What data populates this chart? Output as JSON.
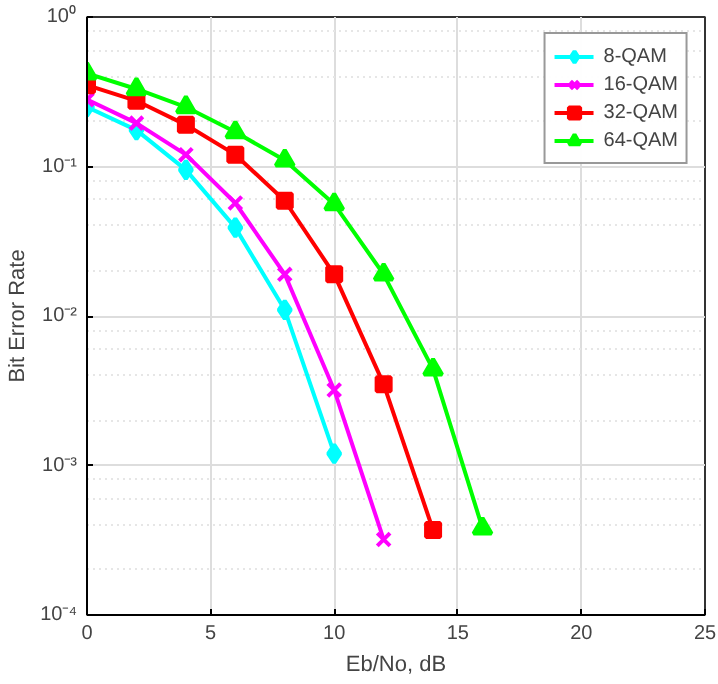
{
  "chart_data": {
    "type": "line",
    "xlabel": "Eb/No, dB",
    "ylabel": "Bit Error Rate",
    "log": "y",
    "grid": true,
    "legend": "top right",
    "line_style": "solid",
    "xlim": [
      0,
      25
    ],
    "xticks": [
      0,
      5,
      10,
      15,
      20,
      25
    ],
    "ylim": [
      0.0001,
      1
    ],
    "yticks": [
      {
        "value": 0.0001,
        "label": "10⁻⁴"
      },
      {
        "value": 0.001,
        "label": "10⁻³"
      },
      {
        "value": 0.01,
        "label": "10⁻²"
      },
      {
        "value": 0.1,
        "label": "10⁻¹"
      },
      {
        "value": 1,
        "label": "10⁰"
      }
    ],
    "series": [
      {
        "name": "8-QAM",
        "color": "#00ffff",
        "marker": "diamond",
        "x": [
          0,
          2,
          4,
          6,
          8,
          10
        ],
        "values": [
          0.25,
          0.175,
          0.095,
          0.039,
          0.011,
          0.0012
        ]
      },
      {
        "name": "16-QAM",
        "color": "#ff00ff",
        "marker": "cross",
        "x": [
          0,
          2,
          4,
          6,
          8,
          10,
          12
        ],
        "values": [
          0.28,
          0.195,
          0.12,
          0.057,
          0.019,
          0.0032,
          0.00032
        ]
      },
      {
        "name": "32-QAM",
        "color": "#ff0000",
        "marker": "square",
        "x": [
          0,
          2,
          4,
          6,
          8,
          10,
          12,
          14
        ],
        "values": [
          0.35,
          0.275,
          0.19,
          0.12,
          0.059,
          0.019,
          0.0035,
          0.00037
        ]
      },
      {
        "name": "64-QAM",
        "color": "#00ff00",
        "marker": "triangle",
        "x": [
          0,
          2,
          4,
          6,
          8,
          10,
          12,
          14,
          16
        ],
        "values": [
          0.42,
          0.33,
          0.25,
          0.17,
          0.11,
          0.056,
          0.019,
          0.0044,
          0.00038
        ]
      }
    ]
  }
}
